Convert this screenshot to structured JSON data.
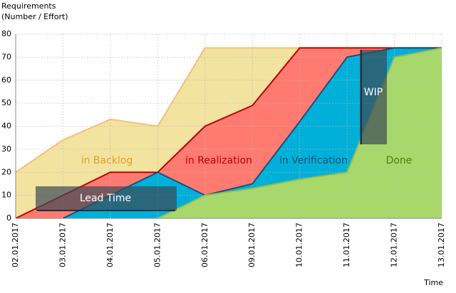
{
  "chart_data": {
    "type": "area",
    "y_label": [
      "Requirements",
      "(Number / Effort)"
    ],
    "x_label": "Time",
    "categories": [
      "02.01.2017",
      "03.01.2017",
      "04.01.2017",
      "05.01.2017",
      "06.01.2017",
      "09.01.2017",
      "10.01.2017",
      "11.01.2017",
      "12.01.2017",
      "13.01.2017"
    ],
    "series": [
      {
        "name": "in Backlog",
        "color": "#f3e3a0",
        "line_color": "#f0c080",
        "label_color": "#e0a020",
        "values": [
          20,
          34,
          43,
          40,
          74,
          74,
          74,
          74,
          74,
          74
        ]
      },
      {
        "name": "in Realization",
        "color": "#ff7a70",
        "line_color": "#c00000",
        "label_color": "#c00000",
        "values": [
          0,
          10,
          20,
          20,
          40,
          49,
          74,
          74,
          74,
          74
        ]
      },
      {
        "name": "in Verification",
        "color": "#00b0d8",
        "line_color": "#1f4e79",
        "label_color": "#1f4e79",
        "values": [
          null,
          0,
          10,
          20,
          10,
          15,
          42,
          70,
          74,
          74
        ]
      },
      {
        "name": "Done",
        "color": "#a8d86a",
        "line_color": "#8fbc5a",
        "label_color": "#5a7a10",
        "values": [
          null,
          null,
          null,
          0,
          10,
          13,
          17,
          20,
          70,
          74
        ]
      }
    ],
    "annotations": [
      "Lead Time",
      "WIP"
    ],
    "ylim": [
      0,
      80
    ],
    "yticks": [
      0,
      10,
      20,
      30,
      40,
      50,
      60,
      70,
      80
    ],
    "grid": true
  }
}
